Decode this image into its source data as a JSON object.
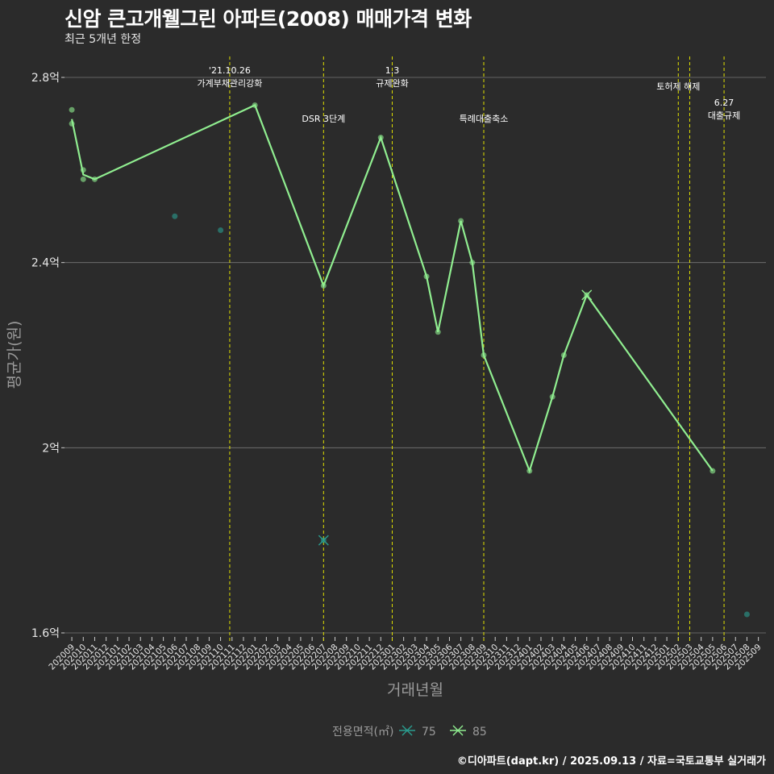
{
  "title": "신암 큰고개웰그린 아파트(2008) 매매가격 변화",
  "subtitle": "최근 5개년 한정",
  "caption": "©디아파트(dapt.kr) / 2025.09.13 / 자료=국토교통부 실거래가",
  "colors": {
    "background": "#2b2b2b",
    "grid": "#777777",
    "series_75": "#2a9d8f",
    "series_85": "#90ee90",
    "event_line": "#e0e000",
    "text": "#ffffff",
    "axis_title": "#9a9a9a"
  },
  "chart_data": {
    "type": "line",
    "xlabel": "거래년월",
    "ylabel": "평균가(원)",
    "ylim": [
      1.6,
      2.85
    ],
    "yticks": [
      1.6,
      2.0,
      2.4,
      2.8
    ],
    "ytick_labels": [
      "1.6억",
      "2억",
      "2.4억",
      "2.8억"
    ],
    "categories": [
      "202009",
      "202010",
      "202011",
      "202012",
      "202101",
      "202102",
      "202103",
      "202104",
      "202105",
      "202106",
      "202107",
      "202108",
      "202109",
      "202110",
      "202111",
      "202112",
      "202201",
      "202202",
      "202203",
      "202204",
      "202205",
      "202206",
      "202207",
      "202208",
      "202209",
      "202210",
      "202211",
      "202212",
      "202301",
      "202302",
      "202303",
      "202304",
      "202305",
      "202306",
      "202307",
      "202308",
      "202309",
      "202310",
      "202311",
      "202312",
      "202401",
      "202402",
      "202403",
      "202404",
      "202405",
      "202406",
      "202407",
      "202408",
      "202409",
      "202410",
      "202411",
      "202412",
      "202501",
      "202502",
      "202503",
      "202504",
      "202505",
      "202506",
      "202507",
      "202508",
      "202509"
    ],
    "legend_title": "전용면적(㎡)",
    "series": [
      {
        "name": "75",
        "line": [],
        "cross": [
          [
            "202207",
            1.8
          ]
        ],
        "points": [
          [
            "202106",
            2.5
          ],
          [
            "202110",
            2.47
          ],
          [
            "202207",
            1.8
          ],
          [
            "202508",
            1.64
          ]
        ]
      },
      {
        "name": "85",
        "line": [
          [
            "202009",
            2.71
          ],
          [
            "202010",
            2.59
          ],
          [
            "202011",
            2.58
          ],
          [
            "202201",
            2.74
          ],
          [
            "202207",
            2.35
          ],
          [
            "202212",
            2.67
          ],
          [
            "202304",
            2.37
          ],
          [
            "202305",
            2.25
          ],
          [
            "202307",
            2.49
          ],
          [
            "202308",
            2.4
          ],
          [
            "202309",
            2.2
          ],
          [
            "202401",
            1.95
          ],
          [
            "202403",
            2.11
          ],
          [
            "202404",
            2.2
          ],
          [
            "202406",
            2.33
          ],
          [
            "202505",
            1.95
          ]
        ],
        "cross": [
          [
            "202406",
            2.33
          ]
        ],
        "points": [
          [
            "202009",
            2.73
          ],
          [
            "202009",
            2.7
          ],
          [
            "202010",
            2.6
          ],
          [
            "202010",
            2.58
          ],
          [
            "202011",
            2.58
          ],
          [
            "202201",
            2.74
          ],
          [
            "202207",
            2.35
          ],
          [
            "202212",
            2.67
          ],
          [
            "202304",
            2.37
          ],
          [
            "202305",
            2.25
          ],
          [
            "202307",
            2.49
          ],
          [
            "202308",
            2.4
          ],
          [
            "202309",
            2.2
          ],
          [
            "202401",
            1.95
          ],
          [
            "202403",
            2.11
          ],
          [
            "202404",
            2.2
          ],
          [
            "202406",
            2.33
          ],
          [
            "202505",
            1.95
          ]
        ]
      }
    ],
    "events": [
      {
        "x": "202110",
        "offset": 0.8,
        "lines": [
          "'21.10.26",
          "가계부채관리강화"
        ],
        "row": 0
      },
      {
        "x": "202207",
        "offset": 0,
        "lines": [
          "DSR 3단계"
        ],
        "row": 1
      },
      {
        "x": "202301",
        "offset": 0,
        "lines": [
          "1.3",
          "규제완화"
        ],
        "row": 0
      },
      {
        "x": "202309",
        "offset": 0,
        "lines": [
          "특례대출축소"
        ],
        "row": 1
      },
      {
        "x": "202502",
        "offset": 0,
        "lines": [],
        "row": 0
      },
      {
        "x": "202503",
        "offset": 0,
        "lines": [
          "토허제 해제"
        ],
        "row": 0,
        "label_x": "202502",
        "label_offset": 0
      },
      {
        "x": "202506",
        "offset": 0,
        "lines": [
          "6.27",
          "대출규제"
        ],
        "row": 1
      }
    ]
  }
}
